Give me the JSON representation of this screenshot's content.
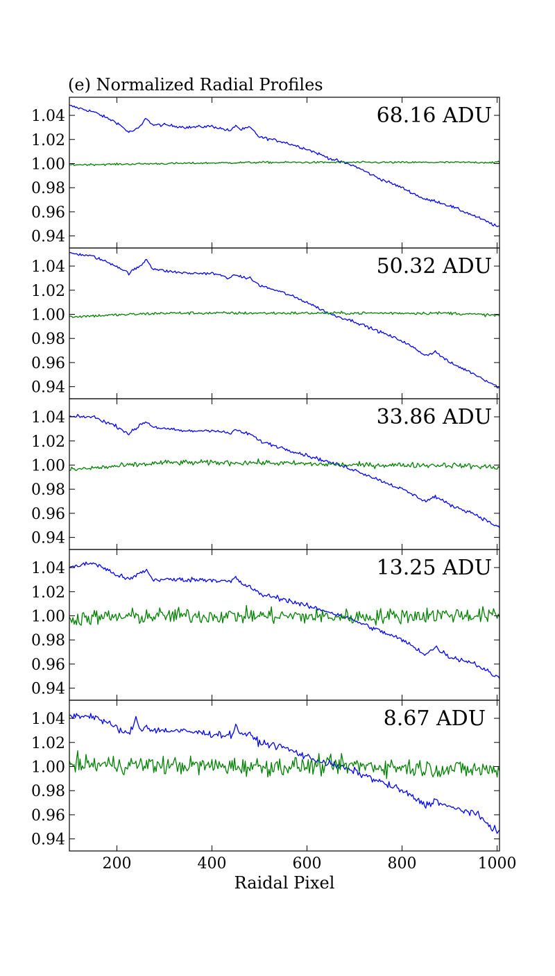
{
  "chart_data": {
    "type": "line",
    "title": "(e) Normalized Radial Profiles",
    "xlabel": "Raidal Pixel",
    "xlim": [
      100,
      1005
    ],
    "ylim": [
      0.93,
      1.055
    ],
    "x_ticks": [
      200,
      400,
      600,
      800,
      1000
    ],
    "y_ticks": [
      0.94,
      0.96,
      0.98,
      1.0,
      1.02,
      1.04
    ],
    "grid": false,
    "series_colors": {
      "profile": "#0000ff",
      "ratio": "#008000"
    },
    "panels": [
      {
        "label": "68.16 ADU",
        "noise": {
          "profile": 0.0012,
          "ratio": 0.0008
        },
        "series": [
          {
            "color": "#0000ff",
            "x": [
              100,
              150,
              200,
              225,
              240,
              250,
              262,
              275,
              300,
              350,
              400,
              440,
              450,
              460,
              480,
              500,
              550,
              600,
              650,
              700,
              750,
              800,
              850,
              870,
              900,
              950,
              1005
            ],
            "y": [
              1.048,
              1.043,
              1.034,
              1.026,
              1.028,
              1.031,
              1.038,
              1.032,
              1.032,
              1.03,
              1.031,
              1.027,
              1.032,
              1.028,
              1.03,
              1.022,
              1.018,
              1.012,
              1.004,
              0.998,
              0.988,
              0.98,
              0.97,
              0.969,
              0.965,
              0.957,
              0.947
            ]
          },
          {
            "color": "#008000",
            "x": [
              100,
              300,
              500,
              700,
              900,
              1005
            ],
            "y": [
              0.999,
              1.0,
              1.001,
              1.001,
              1.001,
              1.001
            ]
          }
        ]
      },
      {
        "label": "50.32 ADU",
        "noise": {
          "profile": 0.0012,
          "ratio": 0.0012
        },
        "series": [
          {
            "color": "#0000ff",
            "x": [
              100,
              150,
              200,
              225,
              240,
              250,
              262,
              275,
              300,
              350,
              400,
              440,
              450,
              460,
              480,
              500,
              550,
              600,
              650,
              700,
              750,
              800,
              850,
              870,
              900,
              950,
              1005
            ],
            "y": [
              1.051,
              1.048,
              1.04,
              1.034,
              1.038,
              1.04,
              1.046,
              1.038,
              1.036,
              1.034,
              1.034,
              1.03,
              1.033,
              1.031,
              1.03,
              1.024,
              1.018,
              1.01,
              1.0,
              0.994,
              0.986,
              0.978,
              0.966,
              0.969,
              0.96,
              0.951,
              0.939
            ]
          },
          {
            "color": "#008000",
            "x": [
              100,
              300,
              500,
              700,
              900,
              1005
            ],
            "y": [
              0.998,
              1.001,
              1.001,
              1.001,
              1.001,
              0.999
            ]
          }
        ]
      },
      {
        "label": "33.86 ADU",
        "noise": {
          "profile": 0.0014,
          "ratio": 0.0022
        },
        "series": [
          {
            "color": "#0000ff",
            "x": [
              100,
              150,
              200,
              225,
              240,
              250,
              262,
              275,
              300,
              350,
              400,
              440,
              450,
              460,
              480,
              500,
              550,
              600,
              650,
              700,
              750,
              800,
              850,
              870,
              900,
              950,
              1005
            ],
            "y": [
              1.04,
              1.04,
              1.032,
              1.026,
              1.03,
              1.034,
              1.036,
              1.032,
              1.03,
              1.028,
              1.029,
              1.026,
              1.03,
              1.027,
              1.026,
              1.02,
              1.014,
              1.008,
              1.002,
              0.996,
              0.988,
              0.98,
              0.97,
              0.974,
              0.967,
              0.96,
              0.948
            ]
          },
          {
            "color": "#008000",
            "x": [
              100,
              300,
              500,
              700,
              900,
              1005
            ],
            "y": [
              0.996,
              1.002,
              1.002,
              1.0,
              1.0,
              0.998
            ]
          }
        ]
      },
      {
        "label": "13.25 ADU",
        "noise": {
          "profile": 0.002,
          "ratio": 0.0065
        },
        "series": [
          {
            "color": "#0000ff",
            "x": [
              100,
              150,
              200,
              225,
              240,
              250,
              262,
              275,
              300,
              350,
              400,
              440,
              450,
              460,
              480,
              500,
              550,
              600,
              650,
              700,
              750,
              800,
              850,
              870,
              900,
              950,
              1005
            ],
            "y": [
              1.04,
              1.044,
              1.034,
              1.03,
              1.033,
              1.036,
              1.038,
              1.03,
              1.03,
              1.03,
              1.03,
              1.028,
              1.032,
              1.027,
              1.024,
              1.018,
              1.014,
              1.008,
              1.003,
              0.996,
              0.988,
              0.98,
              0.968,
              0.974,
              0.966,
              0.961,
              0.948
            ]
          },
          {
            "color": "#008000",
            "x": [
              100,
              300,
              500,
              700,
              900,
              1005
            ],
            "y": [
              0.998,
              1.0,
              1.0,
              0.999,
              1.001,
              1.0
            ]
          }
        ]
      },
      {
        "label": "8.67 ADU",
        "noise": {
          "profile": 0.0028,
          "ratio": 0.0075
        },
        "series": [
          {
            "color": "#0000ff",
            "x": [
              100,
              150,
              200,
              225,
              240,
              250,
              262,
              275,
              300,
              350,
              400,
              440,
              450,
              460,
              480,
              500,
              550,
              600,
              650,
              700,
              750,
              800,
              850,
              870,
              900,
              950,
              1005
            ],
            "y": [
              1.042,
              1.042,
              1.032,
              1.026,
              1.04,
              1.03,
              1.034,
              1.03,
              1.03,
              1.029,
              1.027,
              1.026,
              1.033,
              1.028,
              1.026,
              1.02,
              1.016,
              1.008,
              1.002,
              0.996,
              0.988,
              0.98,
              0.968,
              0.972,
              0.966,
              0.962,
              0.945
            ]
          },
          {
            "color": "#008000",
            "x": [
              100,
              300,
              500,
              700,
              900,
              1005
            ],
            "y": [
              1.002,
              1.001,
              1.0,
              1.001,
              0.998,
              0.997
            ]
          }
        ]
      }
    ]
  }
}
